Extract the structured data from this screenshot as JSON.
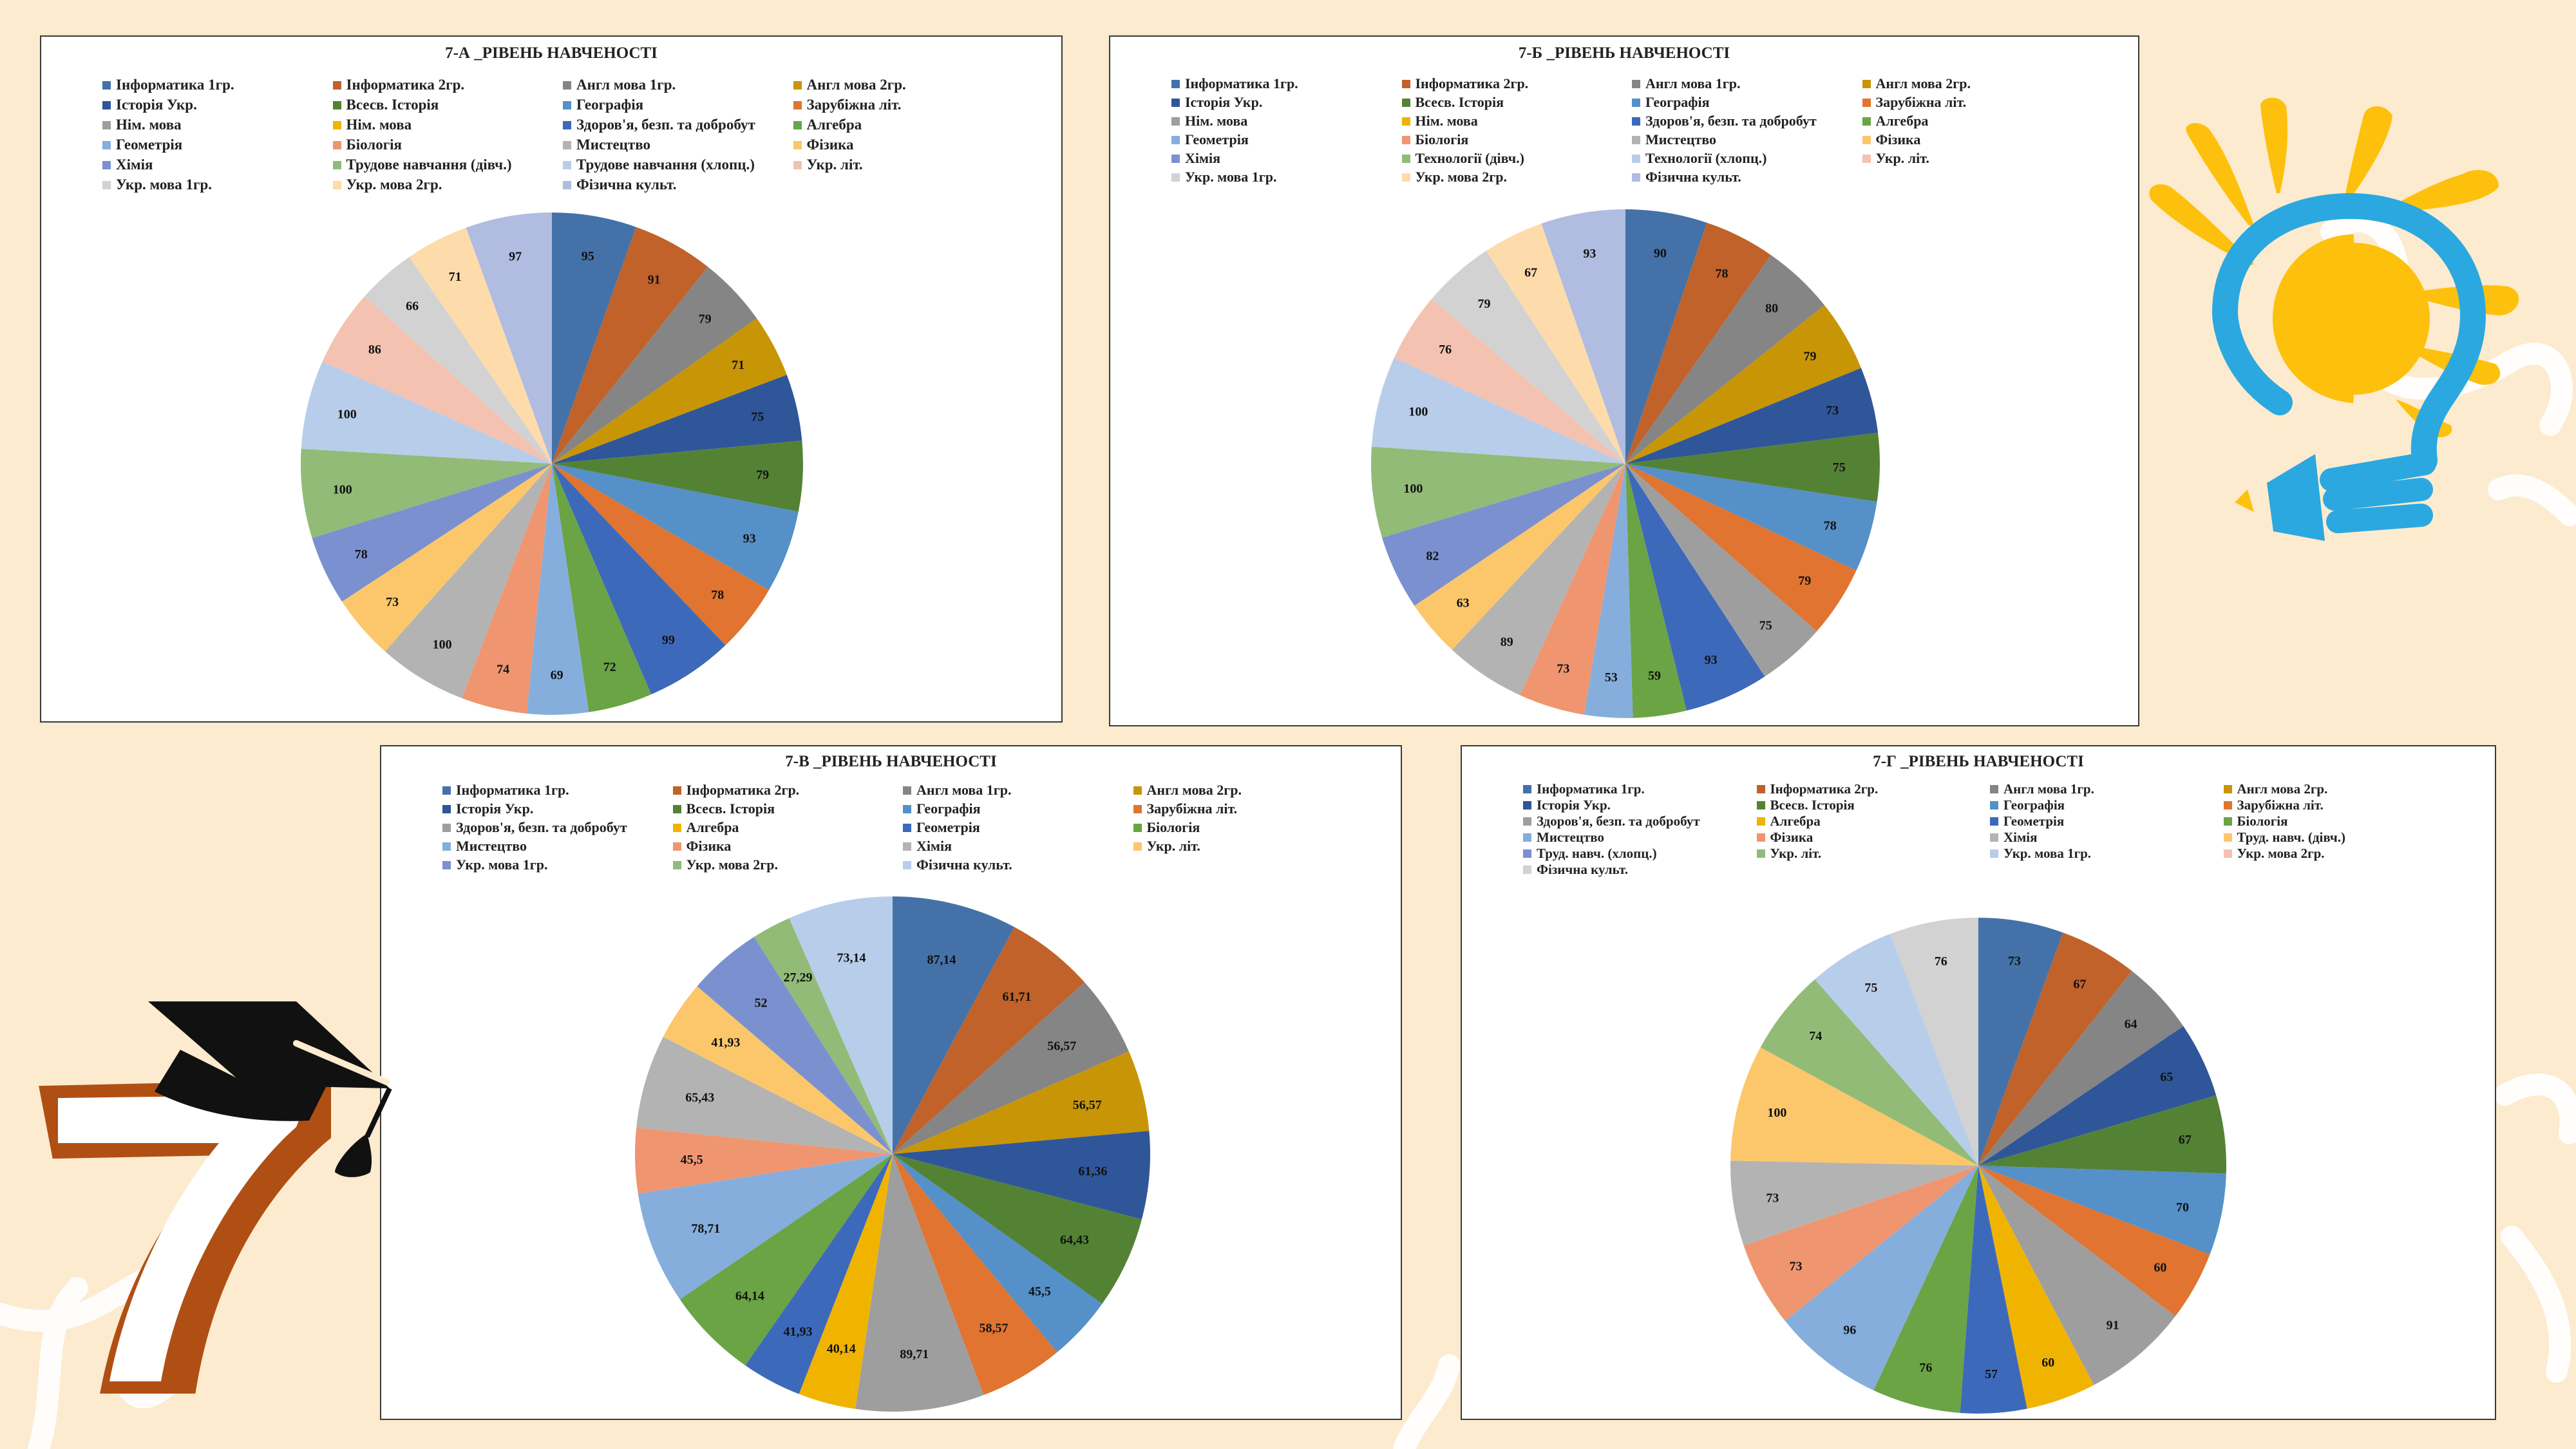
{
  "palette": {
    "background": "#fdebcf",
    "frame_border": "#3a3a3a",
    "bulb_blue": "#2ba8e0",
    "bulb_yellow": "#fdc10d",
    "seven_brown": "#b04f14",
    "cap_black": "#111111"
  },
  "decorations": {
    "lightbulb": "lightbulb-pencil-icon",
    "graduation": "number-seven-with-graduation-cap-icon"
  },
  "chart_data": [
    {
      "id": "7a",
      "type": "pie",
      "title": "7-А _РІВЕНЬ НАВЧЕНОСТІ",
      "legend_position": "top",
      "legend": [
        {
          "label": "Інформатика 1гр.",
          "color": "#4472a8"
        },
        {
          "label": "Інформатика 2гр.",
          "color": "#c0622a"
        },
        {
          "label": "Англ мова 1гр.",
          "color": "#858585"
        },
        {
          "label": "Англ мова 2гр.",
          "color": "#c89506"
        },
        {
          "label": "Історія Укр.",
          "color": "#30569a"
        },
        {
          "label": "Всесв. Історія",
          "color": "#548235"
        },
        {
          "label": "Географія",
          "color": "#5590c8"
        },
        {
          "label": "Зарубіжна літ.",
          "color": "#e07430"
        },
        {
          "label": "Нім. мова",
          "color": "#9e9e9e"
        },
        {
          "label": "Нім. мова",
          "color": "#f0b400"
        },
        {
          "label": "Здоров'я, безп. та добробут",
          "color": "#3d69bb"
        },
        {
          "label": "Алгебра",
          "color": "#6aa444"
        },
        {
          "label": "Геометрія",
          "color": "#85aedd"
        },
        {
          "label": "Біологія",
          "color": "#ef9670"
        },
        {
          "label": "Мистецтво",
          "color": "#b3b3b3"
        },
        {
          "label": "Фізика",
          "color": "#fcc76a"
        },
        {
          "label": "Хімія",
          "color": "#7b90cf"
        },
        {
          "label": "Трудове навчання (дівч.)",
          "color": "#92bb78"
        },
        {
          "label": "Трудове навчання (хлопц.)",
          "color": "#b8cde9"
        },
        {
          "label": "Укр. літ.",
          "color": "#f4c2b0"
        },
        {
          "label": "Укр. мова 1гр.",
          "color": "#d2d2d2"
        },
        {
          "label": "Укр. мова 2гр.",
          "color": "#fddbab"
        },
        {
          "label": "Фізична культ.",
          "color": "#b0bce0"
        }
      ],
      "slices": [
        {
          "label": "Інформатика 1гр.",
          "value": 95,
          "display": "95",
          "color": "#4472a8"
        },
        {
          "label": "Інформатика 2гр.",
          "value": 91,
          "display": "91",
          "color": "#c0622a"
        },
        {
          "label": "Англ мова 1гр.",
          "value": 79,
          "display": "79",
          "color": "#858585"
        },
        {
          "label": "Англ мова 2гр.",
          "value": 71,
          "display": "71",
          "color": "#c89506"
        },
        {
          "label": "Історія Укр.",
          "value": 75,
          "display": "75",
          "color": "#30569a"
        },
        {
          "label": "Всесв. Історія",
          "value": 79,
          "display": "79",
          "color": "#548235"
        },
        {
          "label": "Географія",
          "value": 93,
          "display": "93",
          "color": "#5590c8"
        },
        {
          "label": "Зарубіжна літ.",
          "value": 78,
          "display": "78",
          "color": "#e07430"
        },
        {
          "label": "Здоров'я, безп. та добробут",
          "value": 99,
          "display": "99",
          "color": "#3d69bb"
        },
        {
          "label": "Алгебра",
          "value": 72,
          "display": "72",
          "color": "#6aa444"
        },
        {
          "label": "Геометрія",
          "value": 69,
          "display": "69",
          "color": "#85aedd"
        },
        {
          "label": "Біологія",
          "value": 74,
          "display": "74",
          "color": "#ef9670"
        },
        {
          "label": "Мистецтво",
          "value": 100,
          "display": "100",
          "color": "#b3b3b3"
        },
        {
          "label": "Фізика",
          "value": 73,
          "display": "73",
          "color": "#fcc76a"
        },
        {
          "label": "Хімія",
          "value": 78,
          "display": "78",
          "color": "#7b90cf"
        },
        {
          "label": "Трудове навчання (дівч.)",
          "value": 100,
          "display": "100",
          "color": "#92bb78"
        },
        {
          "label": "Трудове навчання (хлопц.)",
          "value": 100,
          "display": "100",
          "color": "#b8cde9"
        },
        {
          "label": "Укр. літ.",
          "value": 86,
          "display": "86",
          "color": "#f4c2b0"
        },
        {
          "label": "Укр. мова 1гр.",
          "value": 66,
          "display": "66",
          "color": "#d2d2d2"
        },
        {
          "label": "Укр. мова 2гр.",
          "value": 71,
          "display": "71",
          "color": "#fddbab"
        },
        {
          "label": "Фізична культ.",
          "value": 97,
          "display": "97",
          "color": "#b0bce0"
        }
      ]
    },
    {
      "id": "7b",
      "type": "pie",
      "title": "7-Б _РІВЕНЬ НАВЧЕНОСТІ",
      "legend_position": "top",
      "legend": [
        {
          "label": "Інформатика 1гр.",
          "color": "#4472a8"
        },
        {
          "label": "Інформатика 2гр.",
          "color": "#c0622a"
        },
        {
          "label": "Англ мова 1гр.",
          "color": "#858585"
        },
        {
          "label": "Англ мова 2гр.",
          "color": "#c89506"
        },
        {
          "label": "Історія Укр.",
          "color": "#30569a"
        },
        {
          "label": "Всесв. Історія",
          "color": "#548235"
        },
        {
          "label": "Географія",
          "color": "#5590c8"
        },
        {
          "label": "Зарубіжна літ.",
          "color": "#e07430"
        },
        {
          "label": "Нім. мова",
          "color": "#9e9e9e"
        },
        {
          "label": "Нім. мова",
          "color": "#f0b400"
        },
        {
          "label": "Здоров'я, безп. та добробут",
          "color": "#3d69bb"
        },
        {
          "label": "Алгебра",
          "color": "#6aa444"
        },
        {
          "label": "Геометрія",
          "color": "#85aedd"
        },
        {
          "label": "Біологія",
          "color": "#ef9670"
        },
        {
          "label": "Мистецтво",
          "color": "#b3b3b3"
        },
        {
          "label": "Фізика",
          "color": "#fcc76a"
        },
        {
          "label": "Хімія",
          "color": "#7b90cf"
        },
        {
          "label": "Технології (дівч.)",
          "color": "#92bb78"
        },
        {
          "label": "Технології (хлопц.)",
          "color": "#b8cde9"
        },
        {
          "label": "Укр. літ.",
          "color": "#f4c2b0"
        },
        {
          "label": "Укр. мова 1гр.",
          "color": "#d2d2d2"
        },
        {
          "label": "Укр. мова 2гр.",
          "color": "#fddbab"
        },
        {
          "label": "Фізична культ.",
          "color": "#b0bce0"
        }
      ],
      "slices": [
        {
          "label": "Інформатика 1гр.",
          "value": 90,
          "display": "90",
          "color": "#4472a8"
        },
        {
          "label": "Інформатика 2гр.",
          "value": 78,
          "display": "78",
          "color": "#c0622a"
        },
        {
          "label": "Англ мова 1гр.",
          "value": 80,
          "display": "80",
          "color": "#858585"
        },
        {
          "label": "Англ мова 2гр.",
          "value": 79,
          "display": "79",
          "color": "#c89506"
        },
        {
          "label": "Історія Укр.",
          "value": 73,
          "display": "73",
          "color": "#30569a"
        },
        {
          "label": "Всесв. Історія",
          "value": 75,
          "display": "75",
          "color": "#548235"
        },
        {
          "label": "Географія",
          "value": 78,
          "display": "78",
          "color": "#5590c8"
        },
        {
          "label": "Зарубіжна літ.",
          "value": 79,
          "display": "79",
          "color": "#e07430"
        },
        {
          "label": "Нім. мова",
          "value": 75,
          "display": "75",
          "color": "#9e9e9e"
        },
        {
          "label": "Здоров'я, безп. та добробут",
          "value": 93,
          "display": "93",
          "color": "#3d69bb"
        },
        {
          "label": "Алгебра",
          "value": 59,
          "display": "59",
          "color": "#6aa444"
        },
        {
          "label": "Геометрія",
          "value": 53,
          "display": "53",
          "color": "#85aedd"
        },
        {
          "label": "Біологія",
          "value": 73,
          "display": "73",
          "color": "#ef9670"
        },
        {
          "label": "Мистецтво",
          "value": 89,
          "display": "89",
          "color": "#b3b3b3"
        },
        {
          "label": "Фізика",
          "value": 63,
          "display": "63",
          "color": "#fcc76a"
        },
        {
          "label": "Хімія",
          "value": 82,
          "display": "82",
          "color": "#7b90cf"
        },
        {
          "label": "Технології (дівч.)",
          "value": 100,
          "display": "100",
          "color": "#92bb78"
        },
        {
          "label": "Технології (хлопц.)",
          "value": 100,
          "display": "100",
          "color": "#b8cde9"
        },
        {
          "label": "Укр. літ.",
          "value": 76,
          "display": "76",
          "color": "#f4c2b0"
        },
        {
          "label": "Укр. мова 1гр.",
          "value": 79,
          "display": "79",
          "color": "#d2d2d2"
        },
        {
          "label": "Укр. мова 2гр.",
          "value": 67,
          "display": "67",
          "color": "#fddbab"
        },
        {
          "label": "Фізична культ.",
          "value": 93,
          "display": "93",
          "color": "#b0bce0"
        }
      ]
    },
    {
      "id": "7v",
      "type": "pie",
      "title": "7-В _РІВЕНЬ НАВЧЕНОСТІ",
      "legend_position": "top",
      "legend": [
        {
          "label": "Інформатика 1гр.",
          "color": "#4472a8"
        },
        {
          "label": "Інформатика 2гр.",
          "color": "#c0622a"
        },
        {
          "label": "Англ мова 1гр.",
          "color": "#858585"
        },
        {
          "label": "Англ мова 2гр.",
          "color": "#c89506"
        },
        {
          "label": "Історія Укр.",
          "color": "#30569a"
        },
        {
          "label": "Всесв. Історія",
          "color": "#548235"
        },
        {
          "label": "Географія",
          "color": "#5590c8"
        },
        {
          "label": "Зарубіжна літ.",
          "color": "#e07430"
        },
        {
          "label": "Здоров'я, безп. та добробут",
          "color": "#9e9e9e"
        },
        {
          "label": "Алгебра",
          "color": "#f0b400"
        },
        {
          "label": "Геометрія",
          "color": "#3d69bb"
        },
        {
          "label": "Біологія",
          "color": "#6aa444"
        },
        {
          "label": "Мистецтво",
          "color": "#85aedd"
        },
        {
          "label": "Фізика",
          "color": "#ef9670"
        },
        {
          "label": "Хімія",
          "color": "#b3b3b3"
        },
        {
          "label": "Укр. літ.",
          "color": "#fcc76a"
        },
        {
          "label": "Укр. мова 1гр.",
          "color": "#7b90cf"
        },
        {
          "label": "Укр. мова 2гр.",
          "color": "#92bb78"
        },
        {
          "label": "Фізична культ.",
          "color": "#b8cde9"
        }
      ],
      "slices": [
        {
          "label": "Інформатика 1гр.",
          "value": 87.14,
          "display": "87,14",
          "color": "#4472a8"
        },
        {
          "label": "Інформатика 2гр.",
          "value": 61.71,
          "display": "61,71",
          "color": "#c0622a"
        },
        {
          "label": "Англ мова 1гр.",
          "value": 56.57,
          "display": "56,57",
          "color": "#858585"
        },
        {
          "label": "Англ мова 2гр.",
          "value": 56.57,
          "display": "56,57",
          "color": "#c89506"
        },
        {
          "label": "Історія Укр.",
          "value": 61.36,
          "display": "61,36",
          "color": "#30569a"
        },
        {
          "label": "Всесв. Історія",
          "value": 64.43,
          "display": "64,43",
          "color": "#548235"
        },
        {
          "label": "Географія",
          "value": 45.5,
          "display": "45,5",
          "color": "#5590c8"
        },
        {
          "label": "Зарубіжна літ.",
          "value": 58.57,
          "display": "58,57",
          "color": "#e07430"
        },
        {
          "label": "Здоров'я, безп. та добробут",
          "value": 89.71,
          "display": "89,71",
          "color": "#9e9e9e"
        },
        {
          "label": "Алгебра",
          "value": 40.14,
          "display": "40,14",
          "color": "#f0b400"
        },
        {
          "label": "Геометрія",
          "value": 41.93,
          "display": "41,93",
          "color": "#3d69bb"
        },
        {
          "label": "Біологія",
          "value": 64.14,
          "display": "64,14",
          "color": "#6aa444"
        },
        {
          "label": "Мистецтво",
          "value": 78.71,
          "display": "78,71",
          "color": "#85aedd"
        },
        {
          "label": "Фізика",
          "value": 45.5,
          "display": "45,5",
          "color": "#ef9670"
        },
        {
          "label": "Хімія",
          "value": 65.43,
          "display": "65,43",
          "color": "#b3b3b3"
        },
        {
          "label": "Укр. літ.",
          "value": 41.93,
          "display": "41,93",
          "color": "#fcc76a"
        },
        {
          "label": "Укр. мова 1гр.",
          "value": 52,
          "display": "52",
          "color": "#7b90cf"
        },
        {
          "label": "Укр. мова 2гр.",
          "value": 27.29,
          "display": "27,29",
          "color": "#92bb78"
        },
        {
          "label": "Фізична культ.",
          "value": 73.14,
          "display": "73,14",
          "color": "#b8cde9"
        }
      ]
    },
    {
      "id": "7g",
      "type": "pie",
      "title": "7-Г _РІВЕНЬ НАВЧЕНОСТІ",
      "legend_position": "top",
      "legend": [
        {
          "label": "Інформатика 1гр.",
          "color": "#4472a8"
        },
        {
          "label": "Інформатика 2гр.",
          "color": "#c0622a"
        },
        {
          "label": "Англ мова 1гр.",
          "color": "#858585"
        },
        {
          "label": "Англ мова 2гр.",
          "color": "#c89506"
        },
        {
          "label": "Історія Укр.",
          "color": "#30569a"
        },
        {
          "label": "Всесв. Історія",
          "color": "#548235"
        },
        {
          "label": "Географія",
          "color": "#5590c8"
        },
        {
          "label": "Зарубіжна літ.",
          "color": "#e07430"
        },
        {
          "label": "Здоров'я, безп. та добробут",
          "color": "#9e9e9e"
        },
        {
          "label": "Алгебра",
          "color": "#f0b400"
        },
        {
          "label": "Геометрія",
          "color": "#3d69bb"
        },
        {
          "label": "Біологія",
          "color": "#6aa444"
        },
        {
          "label": "Мистецтво",
          "color": "#85aedd"
        },
        {
          "label": "Фізика",
          "color": "#ef9670"
        },
        {
          "label": "Хімія",
          "color": "#b3b3b3"
        },
        {
          "label": "Труд. навч. (дівч.)",
          "color": "#fcc76a"
        },
        {
          "label": "Труд. навч. (хлопц.)",
          "color": "#7b90cf"
        },
        {
          "label": "Укр. літ.",
          "color": "#92bb78"
        },
        {
          "label": "Укр. мова 1гр.",
          "color": "#b8cde9"
        },
        {
          "label": "Укр. мова 2гр.",
          "color": "#f4c2b0"
        },
        {
          "label": "Фізична культ.",
          "color": "#d2d2d2"
        }
      ],
      "slices": [
        {
          "label": "Інформатика 1гр.",
          "value": 73,
          "display": "73",
          "color": "#4472a8"
        },
        {
          "label": "Інформатика 2гр.",
          "value": 67,
          "display": "67",
          "color": "#c0622a"
        },
        {
          "label": "Англ мова 1гр.",
          "value": 64,
          "display": "64",
          "color": "#858585"
        },
        {
          "label": "Історія Укр.",
          "value": 65,
          "display": "65",
          "color": "#30569a"
        },
        {
          "label": "Всесв. Історія",
          "value": 67,
          "display": "67",
          "color": "#548235"
        },
        {
          "label": "Географія",
          "value": 70,
          "display": "70",
          "color": "#5590c8"
        },
        {
          "label": "Зарубіжна літ.",
          "value": 60,
          "display": "60",
          "color": "#e07430"
        },
        {
          "label": "Здоров'я, безп. та добробут",
          "value": 91,
          "display": "91",
          "color": "#9e9e9e"
        },
        {
          "label": "Алгебра",
          "value": 60,
          "display": "60",
          "color": "#f0b400"
        },
        {
          "label": "Геометрія",
          "value": 57,
          "display": "57",
          "color": "#3d69bb"
        },
        {
          "label": "Біологія",
          "value": 76,
          "display": "76",
          "color": "#6aa444"
        },
        {
          "label": "Мистецтво",
          "value": 96,
          "display": "96",
          "color": "#85aedd"
        },
        {
          "label": "Фізика",
          "value": 73,
          "display": "73",
          "color": "#ef9670"
        },
        {
          "label": "Хімія",
          "value": 73,
          "display": "73",
          "color": "#b3b3b3"
        },
        {
          "label": "Труд. навч. (дівч.)",
          "value": 100,
          "display": "100",
          "color": "#fcc76a"
        },
        {
          "label": "Укр. літ.",
          "value": 74,
          "display": "74",
          "color": "#92bb78"
        },
        {
          "label": "Укр. мова 1гр.",
          "value": 75,
          "display": "75",
          "color": "#b8cde9"
        },
        {
          "label": "Фізична культ.",
          "value": 76,
          "display": "76",
          "color": "#d2d2d2"
        }
      ]
    }
  ]
}
